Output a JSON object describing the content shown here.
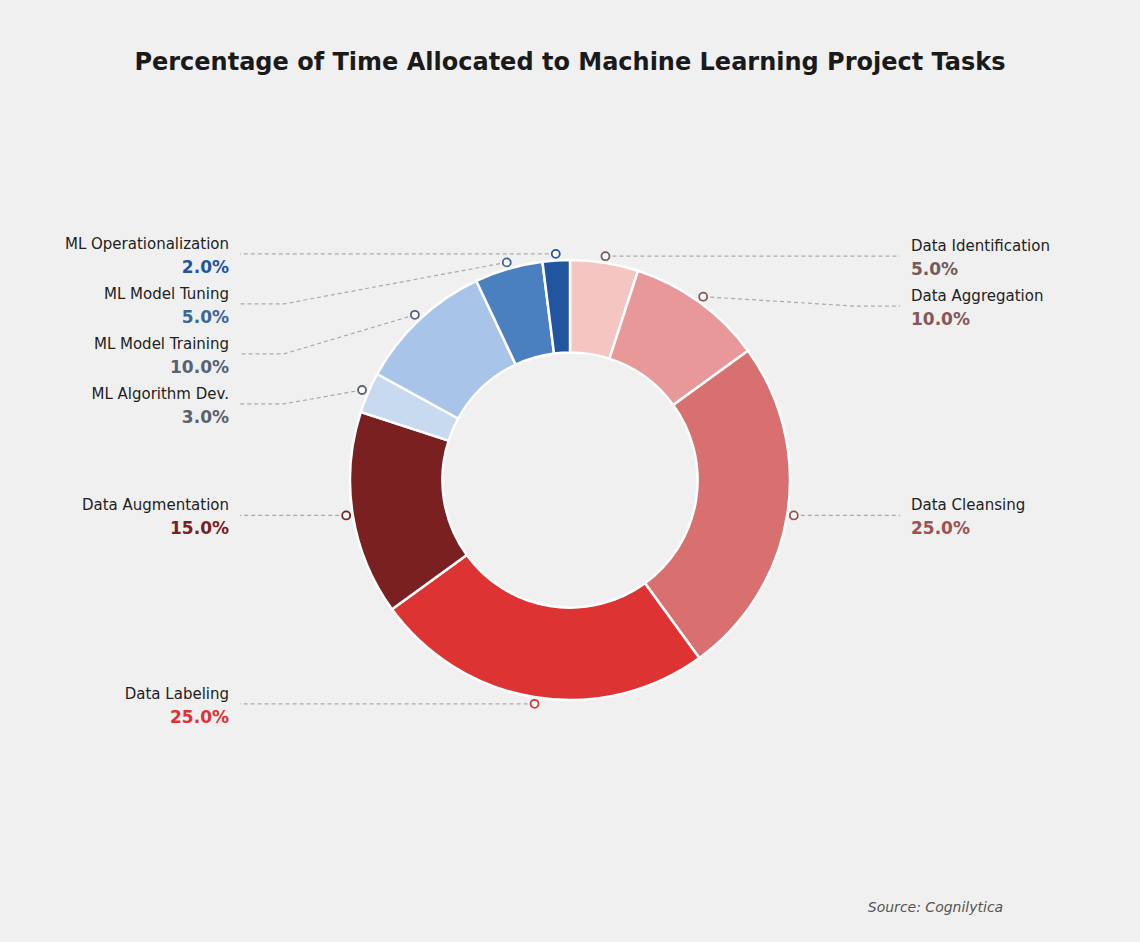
{
  "chart_data": {
    "type": "donut",
    "title": "Percentage of Time Allocated to Machine Learning Project Tasks",
    "source": "Source: Cognilytica",
    "categories": [
      "Data Identification",
      "Data Aggregation",
      "Data Cleansing",
      "Data Labeling",
      "Data Augmentation",
      "ML Algorithm Dev.",
      "ML Model Training",
      "ML Model Tuning",
      "ML Operationalization"
    ],
    "values": [
      5.0,
      10.0,
      25.0,
      25.0,
      15.0,
      3.0,
      10.0,
      5.0,
      2.0
    ],
    "value_labels": [
      "5.0%",
      "10.0%",
      "25.0%",
      "25.0%",
      "15.0%",
      "3.0%",
      "10.0%",
      "5.0%",
      "2.0%"
    ],
    "colors": [
      "#f5c5c2",
      "#e89898",
      "#d97070",
      "#dd3333",
      "#7a2020",
      "#c8daf0",
      "#a8c4e8",
      "#4a7fc0",
      "#2255a0"
    ],
    "data_labels": true
  }
}
